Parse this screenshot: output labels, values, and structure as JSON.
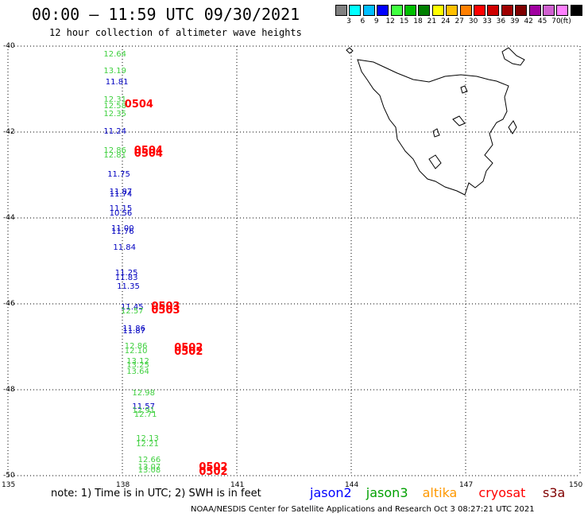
{
  "header": {
    "title": "00:00 – 11:59 UTC 09/30/2021",
    "subtitle": "12 hour collection of altimeter wave heights"
  },
  "colorbar": {
    "colors": [
      "#808080",
      "#00ffff",
      "#00bfff",
      "#0000ff",
      "#40ff40",
      "#00c000",
      "#008000",
      "#ffff00",
      "#ffc000",
      "#ff8000",
      "#ff0000",
      "#d00000",
      "#a00000",
      "#800000",
      "#a000a0",
      "#d060d0",
      "#ff80ff",
      "#000000"
    ],
    "labels": [
      "3",
      "6",
      "9",
      "12",
      "15",
      "18",
      "21",
      "24",
      "27",
      "30",
      "33",
      "36",
      "39",
      "42",
      "45",
      "70"
    ],
    "unit": "(ft)"
  },
  "map": {
    "lat_labels": [
      "-40",
      "-42",
      "-44",
      "-46",
      "-48",
      "-50"
    ],
    "lon_labels": [
      "135",
      "138",
      "141",
      "144",
      "147",
      "150"
    ],
    "lat_range": [
      -50,
      -40
    ],
    "lon_range": [
      135,
      150
    ]
  },
  "observations": [
    {
      "v": "12.64",
      "c": "#40d040",
      "lon": 137.8,
      "lat": -40.2
    },
    {
      "v": "13.19",
      "c": "#40d040",
      "lon": 137.8,
      "lat": -40.6
    },
    {
      "v": "11.81",
      "c": "#0000c0",
      "lon": 137.85,
      "lat": -40.85
    },
    {
      "v": "12.31",
      "c": "#40d040",
      "lon": 137.8,
      "lat": -41.25
    },
    {
      "v": "12.58",
      "c": "#40d040",
      "lon": 137.8,
      "lat": -41.4
    },
    {
      "v": "12.35",
      "c": "#40d040",
      "lon": 137.8,
      "lat": -41.6
    },
    {
      "v": "11.24",
      "c": "#0000c0",
      "lon": 137.8,
      "lat": -42.0
    },
    {
      "v": "12.86",
      "c": "#40d040",
      "lon": 137.8,
      "lat": -42.45
    },
    {
      "v": "12.81",
      "c": "#40d040",
      "lon": 137.8,
      "lat": -42.55
    },
    {
      "v": "11.75",
      "c": "#0000c0",
      "lon": 137.9,
      "lat": -43.0
    },
    {
      "v": "11.87",
      "c": "#0000c0",
      "lon": 137.95,
      "lat": -43.4
    },
    {
      "v": "11.74",
      "c": "#0000c0",
      "lon": 137.95,
      "lat": -43.47
    },
    {
      "v": "11.15",
      "c": "#0000c0",
      "lon": 137.95,
      "lat": -43.8
    },
    {
      "v": "10.56",
      "c": "#0000c0",
      "lon": 137.95,
      "lat": -43.9
    },
    {
      "v": "11.00",
      "c": "#0000c0",
      "lon": 138.0,
      "lat": -44.25
    },
    {
      "v": "11.76",
      "c": "#0000c0",
      "lon": 138.0,
      "lat": -44.33
    },
    {
      "v": "11.84",
      "c": "#0000c0",
      "lon": 138.05,
      "lat": -44.7
    },
    {
      "v": "11.25",
      "c": "#0000c0",
      "lon": 138.1,
      "lat": -45.3
    },
    {
      "v": "11.83",
      "c": "#0000c0",
      "lon": 138.1,
      "lat": -45.4
    },
    {
      "v": "11.35",
      "c": "#0000c0",
      "lon": 138.15,
      "lat": -45.62
    },
    {
      "v": "11.45",
      "c": "#0000c0",
      "lon": 138.25,
      "lat": -46.1
    },
    {
      "v": "12.57",
      "c": "#40d040",
      "lon": 138.25,
      "lat": -46.18
    },
    {
      "v": "11.86",
      "c": "#0000c0",
      "lon": 138.3,
      "lat": -46.6
    },
    {
      "v": "11.87",
      "c": "#0000c0",
      "lon": 138.3,
      "lat": -46.65
    },
    {
      "v": "12.86",
      "c": "#40d040",
      "lon": 138.35,
      "lat": -47.0
    },
    {
      "v": "12.10",
      "c": "#40d040",
      "lon": 138.35,
      "lat": -47.12
    },
    {
      "v": "13.12",
      "c": "#40d040",
      "lon": 138.4,
      "lat": -47.35
    },
    {
      "v": "13.25",
      "c": "#40d040",
      "lon": 138.4,
      "lat": -47.45
    },
    {
      "v": "13.64",
      "c": "#40d040",
      "lon": 138.4,
      "lat": -47.6
    },
    {
      "v": "12.98",
      "c": "#40d040",
      "lon": 138.55,
      "lat": -48.1
    },
    {
      "v": "11.57",
      "c": "#0000c0",
      "lon": 138.55,
      "lat": -48.4
    },
    {
      "v": "12.91",
      "c": "#40d040",
      "lon": 138.55,
      "lat": -48.5
    },
    {
      "v": "12.71",
      "c": "#40d040",
      "lon": 138.6,
      "lat": -48.6
    },
    {
      "v": "12.13",
      "c": "#40d040",
      "lon": 138.65,
      "lat": -49.15
    },
    {
      "v": "12.21",
      "c": "#40d040",
      "lon": 138.65,
      "lat": -49.27
    },
    {
      "v": "12.66",
      "c": "#40d040",
      "lon": 138.7,
      "lat": -49.65
    },
    {
      "v": "13.07",
      "c": "#40d040",
      "lon": 138.7,
      "lat": -49.82
    },
    {
      "v": "13.08",
      "c": "#40d040",
      "lon": 138.7,
      "lat": -49.88
    }
  ],
  "passes": [
    {
      "id": "0504",
      "lon": 138.35,
      "lat": -41.35
    },
    {
      "id": "0504",
      "lon": 138.6,
      "lat": -42.42
    },
    {
      "id": "0504",
      "lon": 138.6,
      "lat": -42.5
    },
    {
      "id": "0503",
      "lon": 139.05,
      "lat": -46.05
    },
    {
      "id": "0503",
      "lon": 139.05,
      "lat": -46.15
    },
    {
      "id": "0502",
      "lon": 139.65,
      "lat": -47.02
    },
    {
      "id": "0502",
      "lon": 139.65,
      "lat": -47.12
    },
    {
      "id": "0502",
      "lon": 140.3,
      "lat": -49.8
    },
    {
      "id": "0502",
      "lon": 140.3,
      "lat": -49.9
    }
  ],
  "footer": {
    "note": "note:  1) Time is in UTC;  2) SWH is in feet",
    "legend": [
      {
        "name": "jason2",
        "color": "#0000ff"
      },
      {
        "name": "jason3",
        "color": "#00a000"
      },
      {
        "name": "altika",
        "color": "#ff9900"
      },
      {
        "name": "cryosat",
        "color": "#ff0000"
      },
      {
        "name": "s3a",
        "color": "#800000"
      }
    ],
    "credit": "NOAA/NESDIS Center for Satellite Applications and Research    Oct  3 08:27:21 UTC 2021"
  }
}
